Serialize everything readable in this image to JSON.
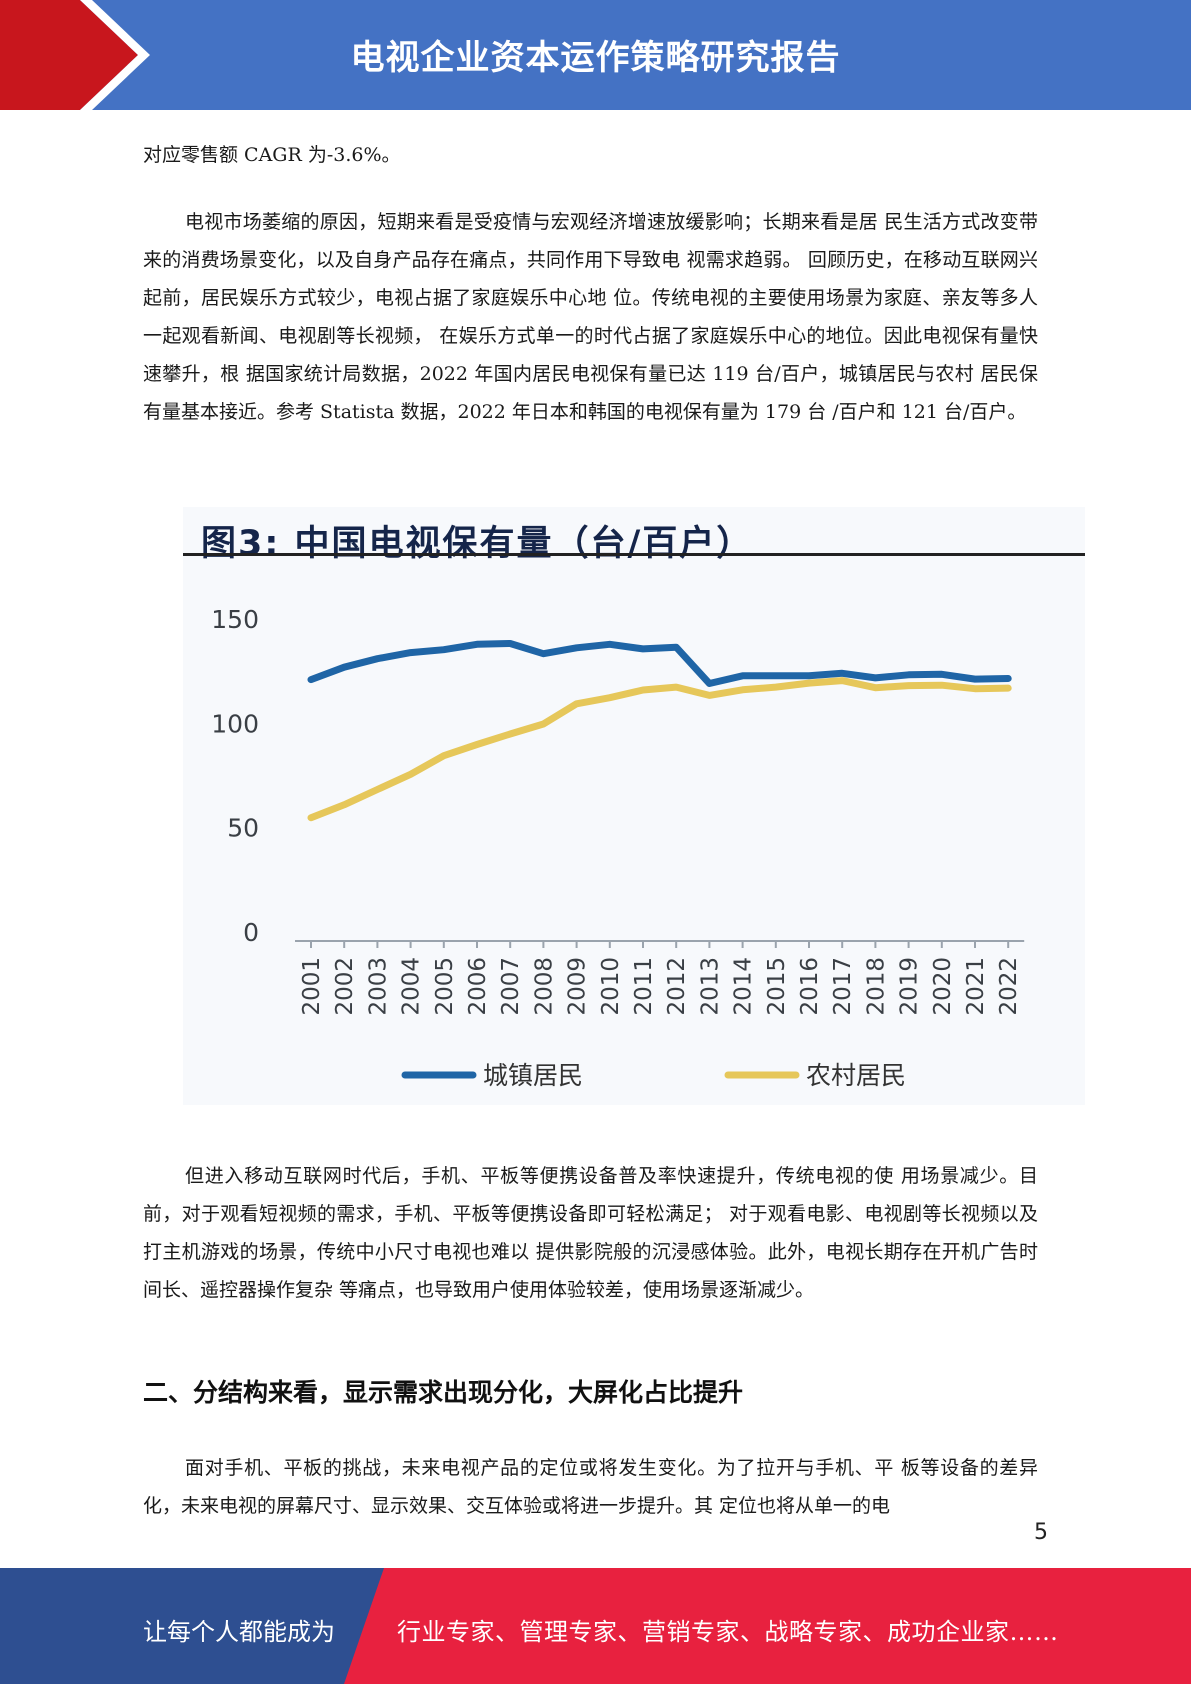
{
  "header": {
    "title": "电视企业资本运作策略研究报告"
  },
  "body": {
    "para_top": "对应零售额 CAGR 为-3.6%。",
    "para_1": "电视市场萎缩的原因，短期来看是受疫情与宏观经济增速放缓影响；长期来看是居 民生活方式改变带来的消费场景变化，以及自身产品存在痛点，共同作用下导致电 视需求趋弱。 回顾历史，在移动互联网兴起前，居民娱乐方式较少，电视占据了家庭娱乐中心地 位。传统电视的主要使用场景为家庭、亲友等多人一起观看新闻、电视剧等长视频， 在娱乐方式单一的时代占据了家庭娱乐中心的地位。因此电视保有量快速攀升，根 据国家统计局数据，2022 年国内居民电视保有量已达 119 台/百户，城镇居民与农村 居民保有量基本接近。参考 Statista 数据，2022 年日本和韩国的电视保有量为 179 台 /百户和 121 台/百户。",
    "para_2": "但进入移动互联网时代后，手机、平板等便携设备普及率快速提升，传统电视的使 用场景减少。目前，对于观看短视频的需求，手机、平板等便携设备即可轻松满足； 对于观看电影、电视剧等长视频以及打主机游戏的场景，传统中小尺寸电视也难以 提供影院般的沉浸感体验。此外，电视长期存在开机广告时间长、遥控器操作复杂 等痛点，也导致用户使用体验较差，使用场景逐渐减少。",
    "heading_2": "二、分结构来看，显示需求出现分化，大屏化占比提升",
    "para_3": "面对手机、平板的挑战，未来电视产品的定位或将发生变化。为了拉开与手机、平 板等设备的差异化，未来电视的屏幕尺寸、显示效果、交互体验或将进一步提升。其 定位也将从单一的电"
  },
  "figure": {
    "title": "图3: 中国电视保有量（台/百户）"
  },
  "chart_data": {
    "type": "line",
    "title": "图3: 中国电视保有量（台/百户）",
    "x": [
      "2001",
      "2002",
      "2003",
      "2004",
      "2005",
      "2006",
      "2007",
      "2008",
      "2009",
      "2010",
      "2011",
      "2012",
      "2013",
      "2014",
      "2015",
      "2016",
      "2017",
      "2018",
      "2019",
      "2020",
      "2021",
      "2022"
    ],
    "series": [
      {
        "name": "城镇居民",
        "color": "#1f65a6",
        "values": [
          120.5,
          126.4,
          130.5,
          133.4,
          134.8,
          137.4,
          137.8,
          132.9,
          135.7,
          137.4,
          135.2,
          136.0,
          118.6,
          122.3,
          122.3,
          122.3,
          123.5,
          121.3,
          122.8,
          123.0,
          120.7,
          121.0
        ]
      },
      {
        "name": "农村居民",
        "color": "#e6c75a",
        "values": [
          54.3,
          60.5,
          67.8,
          75.1,
          84.0,
          89.4,
          94.4,
          99.2,
          108.9,
          111.8,
          115.5,
          116.9,
          112.9,
          115.6,
          116.9,
          118.8,
          120.0,
          116.6,
          117.6,
          117.8,
          116.1,
          116.4
        ]
      }
    ],
    "y_ticks": [
      "0",
      "50",
      "100",
      "150"
    ],
    "ylim": [
      0,
      150
    ],
    "legend": "bottom",
    "grid": false
  },
  "page_number": "5",
  "footer": {
    "left": "让每个人都能成为",
    "right": "行业专家、管理专家、营销专家、战略专家、成功企业家……"
  }
}
